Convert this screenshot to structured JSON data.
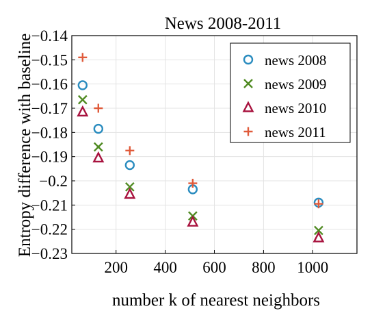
{
  "chart_data": {
    "type": "scatter",
    "title": "News 2008-2011",
    "xlabel": "number k of nearest neighbors",
    "ylabel": "Entropy difference with baseline",
    "xlim": [
      20,
      1180
    ],
    "ylim": [
      -0.23,
      -0.14
    ],
    "xticks": [
      200,
      400,
      600,
      800,
      1000
    ],
    "yticks": [
      -0.14,
      -0.15,
      -0.16,
      -0.17,
      -0.18,
      -0.19,
      -0.2,
      -0.21,
      -0.22,
      -0.23
    ],
    "xtick_labels": [
      "200",
      "400",
      "600",
      "800",
      "1000"
    ],
    "ytick_labels": [
      "−0.14",
      "−0.15",
      "−0.16",
      "−0.17",
      "−0.18",
      "−0.19",
      "−0.2",
      "−0.21",
      "−0.22",
      "−0.23"
    ],
    "grid": true,
    "legend_position": "top-right",
    "series": [
      {
        "name": "news 2008",
        "marker": "circle",
        "color": "#2a8cbf",
        "x": [
          64,
          128,
          256,
          512,
          1024
        ],
        "y": [
          -0.1605,
          -0.1785,
          -0.1935,
          -0.2035,
          -0.209
        ]
      },
      {
        "name": "news 2009",
        "marker": "x",
        "color": "#4f8a21",
        "x": [
          64,
          128,
          256,
          512,
          1024
        ],
        "y": [
          -0.1665,
          -0.186,
          -0.2025,
          -0.2145,
          -0.2205
        ]
      },
      {
        "name": "news 2010",
        "marker": "triangle",
        "color": "#a8123e",
        "x": [
          64,
          128,
          256,
          512,
          1024
        ],
        "y": [
          -0.1715,
          -0.1905,
          -0.2055,
          -0.217,
          -0.2235
        ]
      },
      {
        "name": "news 2011",
        "marker": "plus",
        "color": "#e05a3a",
        "x": [
          64,
          128,
          256,
          512,
          1024
        ],
        "y": [
          -0.149,
          -0.17,
          -0.1875,
          -0.201,
          -0.2095
        ]
      }
    ]
  }
}
